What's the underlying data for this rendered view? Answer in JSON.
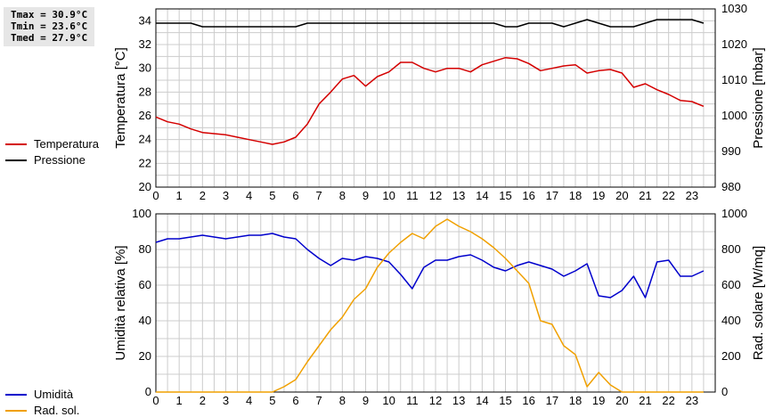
{
  "stats": {
    "tmax": "Tmax = 30.9°C",
    "tmin": "Tmin = 23.6°C",
    "tmed": "Tmed = 27.9°C"
  },
  "colors": {
    "temperature": "#d40000",
    "pressure": "#000000",
    "humidity": "#0000cc",
    "radiation": "#f0a000",
    "grid": "#cccccc"
  },
  "legend_top": [
    {
      "label": "Temperatura",
      "color": "#d40000"
    },
    {
      "label": "Pressione",
      "color": "#000000"
    }
  ],
  "legend_bottom": [
    {
      "label": "Umidità",
      "color": "#0000cc"
    },
    {
      "label": "Rad. sol.",
      "color": "#f0a000"
    }
  ],
  "chart_data": [
    {
      "type": "line",
      "xlim": [
        0,
        24
      ],
      "x_ticks": [
        "0",
        "1",
        "2",
        "3",
        "4",
        "5",
        "6",
        "7",
        "8",
        "9",
        "10",
        "11",
        "12",
        "13",
        "14",
        "15",
        "16",
        "17",
        "18",
        "19",
        "20",
        "21",
        "22",
        "23"
      ],
      "ylabel": "Temperatura [°C]",
      "ylim": [
        20,
        35
      ],
      "y_ticks": [
        "20",
        "22",
        "24",
        "26",
        "28",
        "30",
        "32",
        "34"
      ],
      "y2label": "Pressione [mbar]",
      "y2lim": [
        980,
        1030
      ],
      "y2_ticks": [
        "980",
        "990",
        "1000",
        "1010",
        "1020",
        "1030"
      ],
      "grid": true,
      "series": [
        {
          "name": "Temperatura",
          "axis": "left",
          "color": "#d40000",
          "x": [
            0,
            0.5,
            1,
            1.5,
            2,
            2.5,
            3,
            3.5,
            4,
            4.5,
            5,
            5.5,
            6,
            6.5,
            7,
            7.5,
            8,
            8.5,
            9,
            9.5,
            10,
            10.5,
            11,
            11.5,
            12,
            12.5,
            13,
            13.5,
            14,
            14.5,
            15,
            15.5,
            16,
            16.5,
            17,
            17.5,
            18,
            18.5,
            19,
            19.5,
            20,
            20.5,
            21,
            21.5,
            22,
            22.5,
            23,
            23.5
          ],
          "values": [
            25.9,
            25.5,
            25.3,
            24.9,
            24.6,
            24.5,
            24.4,
            24.2,
            24.0,
            23.8,
            23.6,
            23.8,
            24.2,
            25.3,
            27.0,
            28.0,
            29.1,
            29.4,
            28.5,
            29.3,
            29.7,
            30.5,
            30.5,
            30.0,
            29.7,
            30.0,
            30.0,
            29.7,
            30.3,
            30.6,
            30.9,
            30.8,
            30.4,
            29.8,
            30.0,
            30.2,
            30.3,
            29.6,
            29.8,
            29.9,
            29.6,
            28.4,
            28.7,
            28.2,
            27.8,
            27.3,
            27.2,
            26.8
          ]
        },
        {
          "name": "Pressione",
          "axis": "right",
          "color": "#000000",
          "x": [
            0,
            0.5,
            1,
            1.5,
            2,
            2.5,
            3,
            3.5,
            4,
            4.5,
            5,
            5.5,
            6,
            6.5,
            7,
            7.5,
            8,
            8.5,
            9,
            9.5,
            10,
            10.5,
            11,
            11.5,
            12,
            12.5,
            13,
            13.5,
            14,
            14.5,
            15,
            15.5,
            16,
            16.5,
            17,
            17.5,
            18,
            18.5,
            19,
            19.5,
            20,
            20.5,
            21,
            21.5,
            22,
            22.5,
            23,
            23.5
          ],
          "values": [
            1026,
            1026,
            1026,
            1026,
            1025,
            1025,
            1025,
            1025,
            1025,
            1025,
            1025,
            1025,
            1025,
            1026,
            1026,
            1026,
            1026,
            1026,
            1026,
            1026,
            1026,
            1026,
            1026,
            1026,
            1026,
            1026,
            1026,
            1026,
            1026,
            1026,
            1025,
            1025,
            1026,
            1026,
            1026,
            1025,
            1026,
            1027,
            1026,
            1025,
            1025,
            1025,
            1026,
            1027,
            1027,
            1027,
            1027,
            1026
          ]
        }
      ]
    },
    {
      "type": "line",
      "xlim": [
        0,
        24
      ],
      "x_ticks": [
        "0",
        "1",
        "2",
        "3",
        "4",
        "5",
        "6",
        "7",
        "8",
        "9",
        "10",
        "11",
        "12",
        "13",
        "14",
        "15",
        "16",
        "17",
        "18",
        "19",
        "20",
        "21",
        "22",
        "23"
      ],
      "ylabel": "Umidità relativa [%]",
      "ylim": [
        0,
        100
      ],
      "y_ticks": [
        "0",
        "20",
        "40",
        "60",
        "80",
        "100"
      ],
      "y2label": "Rad. solare [W/mq]",
      "y2lim": [
        0,
        1000
      ],
      "y2_ticks": [
        "0",
        "200",
        "400",
        "600",
        "800",
        "1000"
      ],
      "grid": true,
      "series": [
        {
          "name": "Umidità",
          "axis": "left",
          "color": "#0000cc",
          "x": [
            0,
            0.5,
            1,
            1.5,
            2,
            2.5,
            3,
            3.5,
            4,
            4.5,
            5,
            5.5,
            6,
            6.5,
            7,
            7.5,
            8,
            8.5,
            9,
            9.5,
            10,
            10.5,
            11,
            11.5,
            12,
            12.5,
            13,
            13.5,
            14,
            14.5,
            15,
            15.5,
            16,
            16.5,
            17,
            17.5,
            18,
            18.5,
            19,
            19.5,
            20,
            20.5,
            21,
            21.5,
            22,
            22.5,
            23,
            23.5
          ],
          "values": [
            84,
            86,
            86,
            87,
            88,
            87,
            86,
            87,
            88,
            88,
            89,
            87,
            86,
            80,
            75,
            71,
            75,
            74,
            76,
            75,
            73,
            66,
            58,
            70,
            74,
            74,
            76,
            77,
            74,
            70,
            68,
            71,
            73,
            71,
            69,
            65,
            68,
            72,
            54,
            53,
            57,
            65,
            53,
            73,
            74,
            65,
            65,
            68
          ]
        },
        {
          "name": "Rad. sol.",
          "axis": "right",
          "color": "#f0a000",
          "x": [
            0,
            0.5,
            1,
            1.5,
            2,
            2.5,
            3,
            3.5,
            4,
            4.5,
            5,
            5.5,
            6,
            6.5,
            7,
            7.5,
            8,
            8.5,
            9,
            9.5,
            10,
            10.5,
            11,
            11.5,
            12,
            12.5,
            13,
            13.5,
            14,
            14.5,
            15,
            15.5,
            16,
            16.5,
            17,
            17.5,
            18,
            18.5,
            19,
            19.5,
            20,
            20.5,
            21,
            21.5,
            22,
            22.5,
            23,
            23.5
          ],
          "values": [
            0,
            0,
            0,
            0,
            0,
            0,
            0,
            0,
            0,
            0,
            0,
            30,
            70,
            170,
            260,
            350,
            420,
            520,
            580,
            700,
            780,
            840,
            890,
            860,
            930,
            970,
            930,
            900,
            860,
            810,
            750,
            680,
            610,
            400,
            380,
            260,
            210,
            30,
            110,
            40,
            0,
            0,
            0,
            0,
            0,
            0,
            0,
            0
          ]
        }
      ]
    }
  ]
}
